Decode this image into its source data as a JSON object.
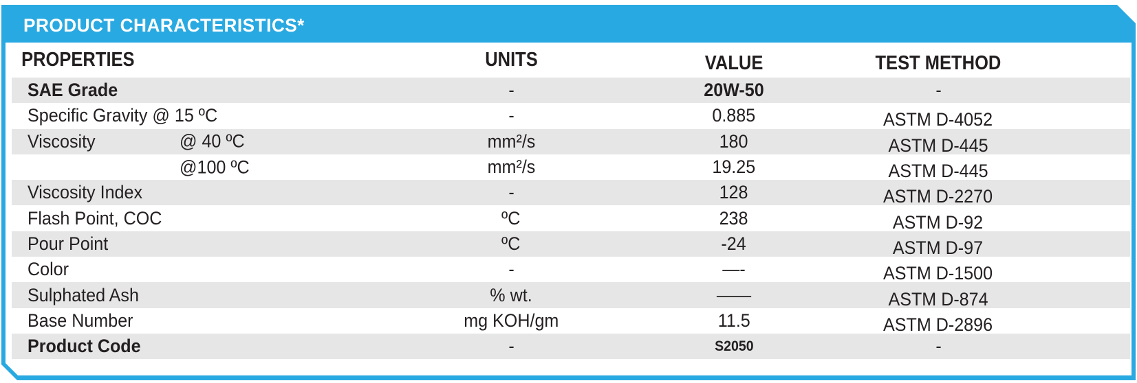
{
  "card": {
    "title": "PRODUCT CHARACTERISTICS*",
    "columns": {
      "properties": "PROPERTIES",
      "units": "UNITS",
      "value": "VALUE",
      "method": "TEST METHOD"
    },
    "rows": [
      {
        "property": "SAE Grade",
        "sub": "",
        "units": "-",
        "value": "20W-50",
        "method": "-",
        "bold": true,
        "value_small": false
      },
      {
        "property": "Specific Gravity @ 15 ºC",
        "sub": "",
        "units": "-",
        "value": "0.885",
        "method": "ASTM D-4052",
        "bold": false,
        "value_small": false
      },
      {
        "property": "Viscosity",
        "sub": "@ 40 ºC",
        "units": "mm²/s",
        "value": "180",
        "method": "ASTM D-445",
        "bold": false,
        "value_small": false
      },
      {
        "property": "",
        "sub": "@100 ºC",
        "units": "mm²/s",
        "value": "19.25",
        "method": "ASTM D-445",
        "bold": false,
        "value_small": false
      },
      {
        "property": "Viscosity Index",
        "sub": "",
        "units": "-",
        "value": "128",
        "method": "ASTM D-2270",
        "bold": false,
        "value_small": false
      },
      {
        "property": "Flash Point, COC",
        "sub": "",
        "units": "ºC",
        "value": "238",
        "method": "ASTM D-92",
        "bold": false,
        "value_small": false
      },
      {
        "property": "Pour Point",
        "sub": "",
        "units": "ºC",
        "value": "-24",
        "method": "ASTM D-97",
        "bold": false,
        "value_small": false
      },
      {
        "property": "Color",
        "sub": "",
        "units": "-",
        "value": "—-",
        "method": "ASTM D-1500",
        "bold": false,
        "value_small": false
      },
      {
        "property": "Sulphated Ash",
        "sub": "",
        "units": "% wt.",
        "value": "——",
        "method": "ASTM D-874",
        "bold": false,
        "value_small": false
      },
      {
        "property": "Base Number",
        "sub": "",
        "units": "mg KOH/gm",
        "value": "11.5",
        "method": "ASTM D-2896",
        "bold": false,
        "value_small": false
      },
      {
        "property": "Product Code",
        "sub": "",
        "units": "-",
        "value": "S2050",
        "method": "-",
        "bold": true,
        "value_small": true
      }
    ],
    "colors": {
      "accent_blue": "#29A9E1",
      "row_stripe": "#E6E6E6",
      "text": "#231F20",
      "title_text": "#FFFFFF"
    }
  }
}
